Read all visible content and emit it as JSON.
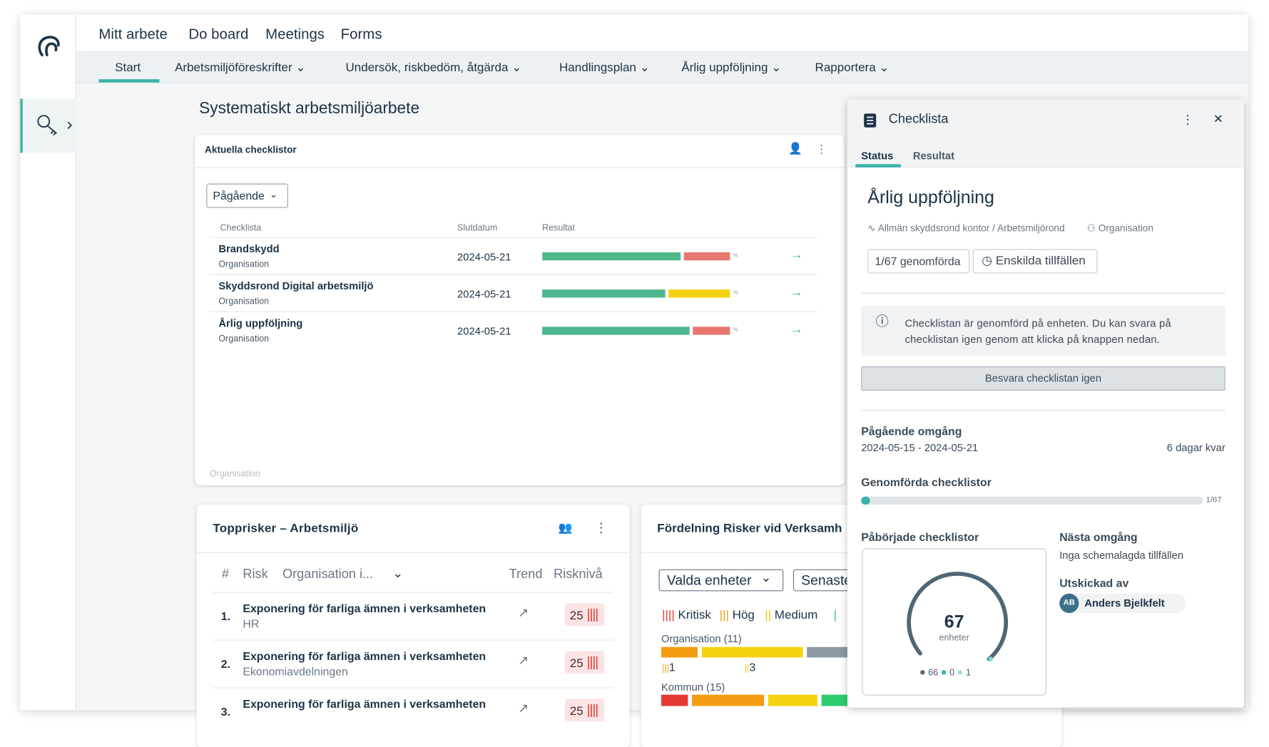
{
  "nav": {
    "top": [
      "Mitt arbete",
      "Do board",
      "Meetings",
      "Forms"
    ],
    "sub": [
      "Start",
      "Arbetsmiljöföreskrifter",
      "Undersök, riskbedöm, åtgärda",
      "Handlingsplan",
      "Årlig uppföljning",
      "Rapportera"
    ]
  },
  "page_title": "Systematiskt arbetsmiljöarbete",
  "checklists_card": {
    "title": "Aktuella checklistor",
    "filter": "Pågående",
    "columns": [
      "Checklista",
      "Slutdatum",
      "Resultat"
    ],
    "rows": [
      {
        "name": "Brandskydd",
        "org": "Organisation",
        "date": "2024-05-21",
        "unit": "%"
      },
      {
        "name": "Skyddsrond Digital arbetsmiljö",
        "org": "Organisation",
        "date": "2024-05-21",
        "unit": "%"
      },
      {
        "name": "Årlig uppföljning",
        "org": "Organisation",
        "date": "2024-05-21",
        "unit": "%"
      }
    ],
    "footer": "Organisation"
  },
  "top_risks": {
    "title": "Topprisker – Arbetsmiljö",
    "columns": [
      "#",
      "Risk",
      "Organisation i...",
      "Trend",
      "Risknivå"
    ],
    "rows": [
      {
        "rank": "1.",
        "risk": "Exponering för farliga ämnen i verksamheten",
        "unit": "HR",
        "level": "25"
      },
      {
        "rank": "2.",
        "risk": "Exponering för farliga ämnen i verksamheten",
        "unit": "Ekonomiavdelningen",
        "level": "25"
      },
      {
        "rank": "3.",
        "risk": "Exponering för farliga ämnen i verksamheten",
        "level": "25"
      }
    ]
  },
  "distribution": {
    "title": "Fördelning Risker vid Verksamh",
    "filters": [
      "Valda enheter",
      "Senaste"
    ],
    "legend": [
      "Kritisk",
      "Hög",
      "Medium"
    ],
    "groups": [
      {
        "label": "Organisation (11)",
        "counts": [
          "1",
          "3"
        ]
      },
      {
        "label": "Kommun (15)"
      }
    ]
  },
  "panel": {
    "title": "Checklista",
    "tabs": [
      "Status",
      "Resultat"
    ],
    "heading": "Årlig uppföljning",
    "breadcrumb": "Allmän skyddsrond kontor / Arbetsmiljörond",
    "scope": "Organisation",
    "chips": [
      "1/67 genomförda",
      "Enskilda tillfällen"
    ],
    "info": [
      "Checklistan är genomförd på enheten. Du kan svara på",
      "checklistan igen genom att klicka på knappen nedan."
    ],
    "button": "Besvara checklistan igen",
    "current_round": {
      "label": "Pågående omgång",
      "dates": "2024-05-15 - 2024-05-21",
      "remaining": "6 dagar kvar"
    },
    "completed": {
      "label": "Genomförda checklistor",
      "value": "1/67"
    },
    "started": {
      "label": "Påbörjade checklistor",
      "total": 67,
      "unit": "enheter",
      "legend": [
        66,
        0,
        1
      ]
    },
    "next_round": {
      "label": "Nästa omgång",
      "text": "Inga schemalagda tillfällen"
    },
    "sent_by": {
      "label": "Utskickad av",
      "initials": "AB",
      "name": "Anders Bjelkfelt"
    }
  }
}
